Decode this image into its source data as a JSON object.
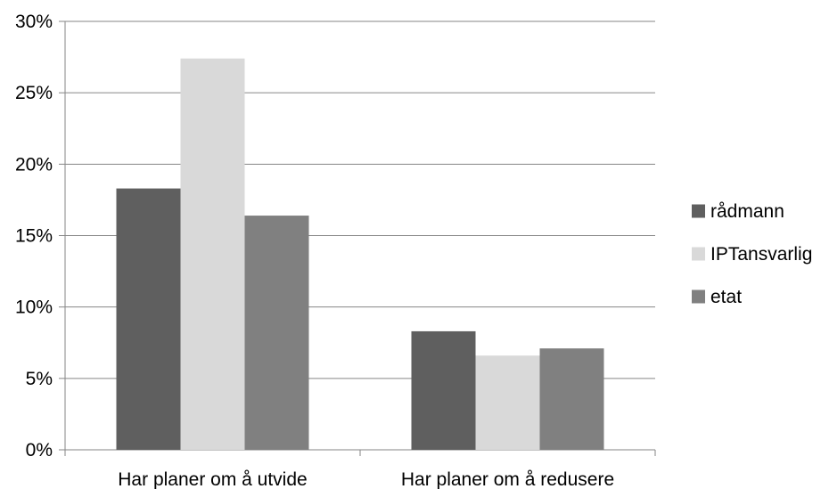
{
  "chart_data": {
    "type": "bar",
    "categories": [
      "Har planer om å utvide",
      "Har planer om å redusere"
    ],
    "series": [
      {
        "name": "rådmann",
        "values": [
          18.3,
          8.3
        ],
        "color": "#5f5f5f"
      },
      {
        "name": "IPTansvarlig",
        "values": [
          27.4,
          6.6
        ],
        "color": "#d9d9d9"
      },
      {
        "name": "etat",
        "values": [
          16.4,
          7.1
        ],
        "color": "#808080"
      }
    ],
    "ylim": [
      0,
      30
    ],
    "yticks": [
      "0%",
      "5%",
      "10%",
      "15%",
      "20%",
      "25%",
      "30%"
    ],
    "ytick_values": [
      0,
      5,
      10,
      15,
      20,
      25,
      30
    ],
    "grid": true,
    "legend_position": "right"
  }
}
